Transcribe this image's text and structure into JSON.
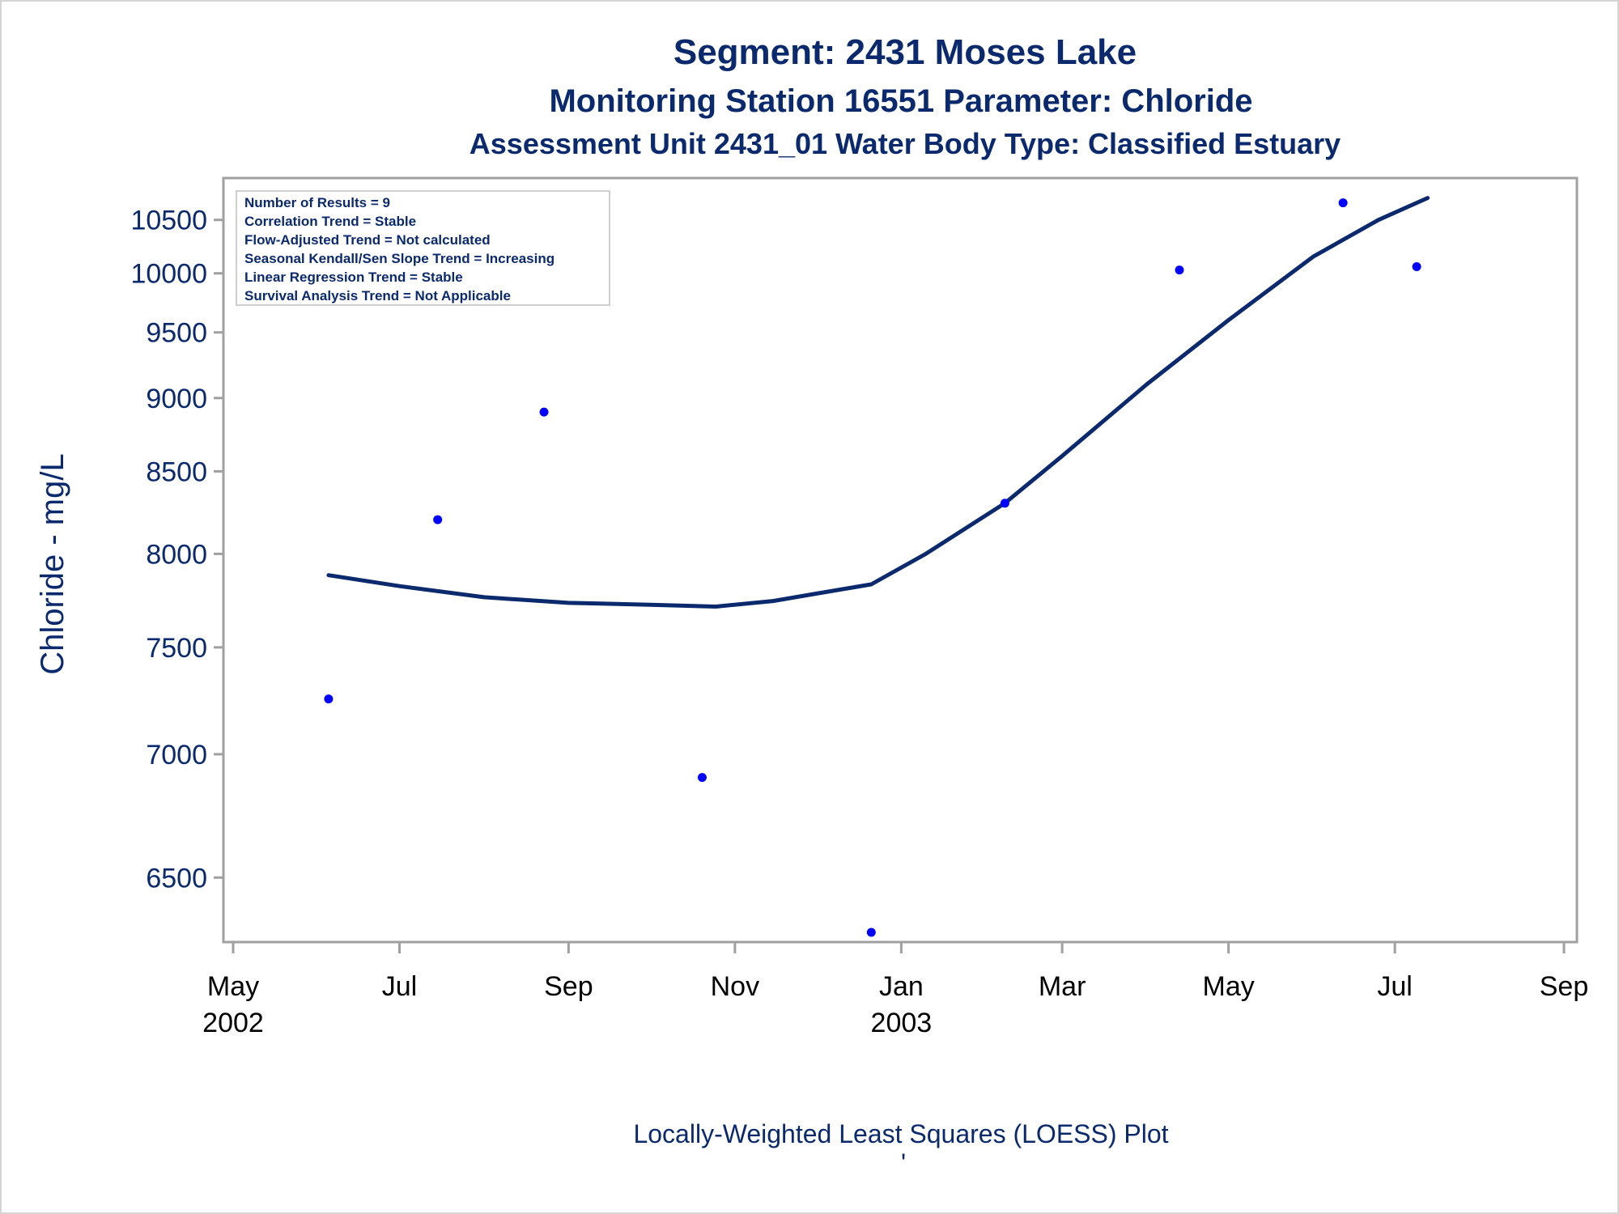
{
  "titles": {
    "line1": "Segment: 2431  Moses Lake",
    "line2": "Monitoring Station 16551 Parameter: Chloride",
    "line3": "Assessment Unit 2431_01   Water Body Type: Classified Estuary"
  },
  "footnote": "Locally-Weighted Least Squares (LOESS) Plot",
  "footnote_mark": "'",
  "colors": {
    "text": "#0b2a6e",
    "points": "#0000ff",
    "loess": "#0b2a6e",
    "frame": "#a0a0a0"
  },
  "chart_data": {
    "type": "scatter",
    "ylabel": "Chloride - mg/L",
    "xlabel": "",
    "y_scale": "reciprocal",
    "ylim": [
      6300,
      10750
    ],
    "xlim": [
      "2002-05-01",
      "2003-09-01"
    ],
    "y_ticks": [
      6500,
      7000,
      7500,
      8000,
      8500,
      9000,
      9500,
      10000,
      10500
    ],
    "x_ticks": [
      {
        "date": "2002-05-01",
        "label": "May",
        "year": "2002"
      },
      {
        "date": "2002-07-01",
        "label": "Jul",
        "year": ""
      },
      {
        "date": "2002-09-01",
        "label": "Sep",
        "year": ""
      },
      {
        "date": "2002-11-01",
        "label": "Nov",
        "year": ""
      },
      {
        "date": "2003-01-01",
        "label": "Jan",
        "year": "2003"
      },
      {
        "date": "2003-03-01",
        "label": "Mar",
        "year": ""
      },
      {
        "date": "2003-05-01",
        "label": "May",
        "year": ""
      },
      {
        "date": "2003-07-01",
        "label": "Jul",
        "year": ""
      },
      {
        "date": "2003-09-01",
        "label": "Sep",
        "year": ""
      }
    ],
    "series": [
      {
        "name": "",
        "kind": "points",
        "points": [
          {
            "x": "2002-06-05",
            "y": 7250
          },
          {
            "x": "2002-07-15",
            "y": 8200
          },
          {
            "x": "2002-08-23",
            "y": 8900
          },
          {
            "x": "2002-10-20",
            "y": 6900
          },
          {
            "x": "2002-12-21",
            "y": 6300
          },
          {
            "x": "2003-02-08",
            "y": 8300
          },
          {
            "x": "2003-04-13",
            "y": 10030
          },
          {
            "x": "2003-06-12",
            "y": 10670
          },
          {
            "x": "2003-07-09",
            "y": 10060
          }
        ]
      },
      {
        "name": "",
        "kind": "loess",
        "points": [
          {
            "x": "2002-06-05",
            "y": 7880
          },
          {
            "x": "2002-07-01",
            "y": 7820
          },
          {
            "x": "2002-08-01",
            "y": 7760
          },
          {
            "x": "2002-09-01",
            "y": 7730
          },
          {
            "x": "2002-10-01",
            "y": 7720
          },
          {
            "x": "2002-10-25",
            "y": 7710
          },
          {
            "x": "2002-11-15",
            "y": 7740
          },
          {
            "x": "2002-12-01",
            "y": 7780
          },
          {
            "x": "2002-12-21",
            "y": 7830
          },
          {
            "x": "2003-01-10",
            "y": 8000
          },
          {
            "x": "2003-02-08",
            "y": 8300
          },
          {
            "x": "2003-03-01",
            "y": 8600
          },
          {
            "x": "2003-04-01",
            "y": 9100
          },
          {
            "x": "2003-05-01",
            "y": 9600
          },
          {
            "x": "2003-06-01",
            "y": 10150
          },
          {
            "x": "2003-06-25",
            "y": 10500
          },
          {
            "x": "2003-07-13",
            "y": 10720
          }
        ]
      }
    ],
    "legend_placement": "top-left",
    "legend_lines": [
      "Number of Results = 9",
      "Correlation Trend = Stable",
      "Flow-Adjusted Trend = Not calculated",
      "Seasonal Kendall/Sen Slope Trend = Increasing",
      "Linear Regression Trend = Stable",
      "Survival Analysis Trend = Not Applicable"
    ],
    "grid": false
  }
}
